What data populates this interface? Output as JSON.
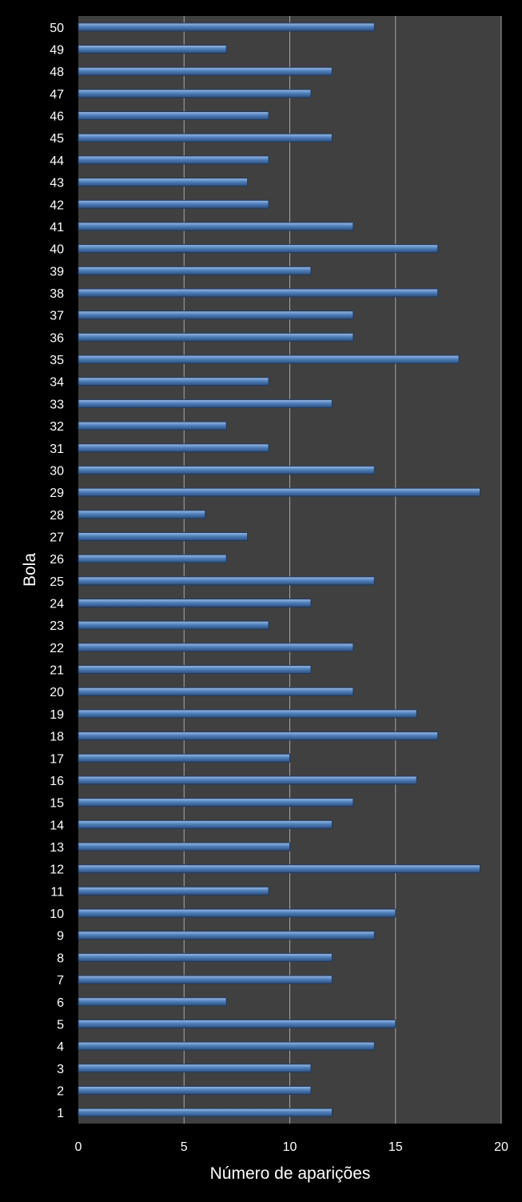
{
  "chart_data": {
    "type": "bar",
    "orientation": "horizontal",
    "title": "",
    "xlabel": "Número de aparições",
    "ylabel": "Bola",
    "xlim": [
      0,
      20
    ],
    "xticks": [
      0,
      5,
      10,
      15,
      20
    ],
    "grid": "vertical major gridlines on",
    "legend": "none",
    "categories": [
      "1",
      "2",
      "3",
      "4",
      "5",
      "6",
      "7",
      "8",
      "9",
      "10",
      "11",
      "12",
      "13",
      "14",
      "15",
      "16",
      "17",
      "18",
      "19",
      "20",
      "21",
      "22",
      "23",
      "24",
      "25",
      "26",
      "27",
      "28",
      "29",
      "30",
      "31",
      "32",
      "33",
      "34",
      "35",
      "36",
      "37",
      "38",
      "39",
      "40",
      "41",
      "42",
      "43",
      "44",
      "45",
      "46",
      "47",
      "48",
      "49",
      "50"
    ],
    "values": [
      12,
      11,
      11,
      14,
      15,
      7,
      12,
      12,
      14,
      15,
      9,
      19,
      10,
      12,
      13,
      16,
      10,
      17,
      16,
      13,
      11,
      13,
      9,
      11,
      14,
      7,
      8,
      6,
      19,
      14,
      9,
      7,
      12,
      9,
      18,
      13,
      13,
      17,
      11,
      17,
      13,
      9,
      8,
      9,
      12,
      9,
      11,
      12,
      7,
      14
    ],
    "colors": {
      "background": "#000000",
      "plot_area": "#404040",
      "gridline": "#a6a6a6",
      "bar_fill": "#4f81bd",
      "bar_highlight": "#9fbbe2",
      "bar_edge": "#1f3a60",
      "text": "#ffffff"
    }
  }
}
